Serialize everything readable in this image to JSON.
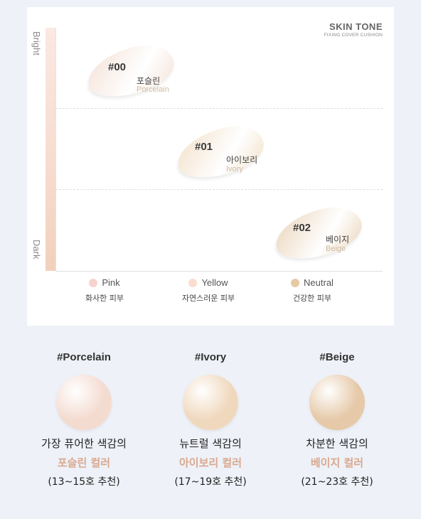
{
  "brand": {
    "title": "SKIN TONE",
    "subtitle": "FIXING COVER CUSHION"
  },
  "axis": {
    "top": "Bright",
    "bottom": "Dark"
  },
  "shades": [
    {
      "code": "#00",
      "name_ko": "포슬린",
      "name_en": "Porcelain",
      "color": "#f4e1d6"
    },
    {
      "code": "#01",
      "name_ko": "아이보리",
      "name_en": "Ivory",
      "color": "#f2e0c8"
    },
    {
      "code": "#02",
      "name_ko": "베이지",
      "name_en": "Beige",
      "color": "#ead4b9"
    }
  ],
  "legend": [
    {
      "name": "Pink",
      "desc": "화사한 피부",
      "color": "#f8d2cc"
    },
    {
      "name": "Yellow",
      "desc": "자연스러운 피부",
      "color": "#f9ddd0"
    },
    {
      "name": "Neutral",
      "desc": "건강한 피부",
      "color": "#e7c9a4"
    }
  ],
  "columns": [
    {
      "tag": "#Porcelain",
      "line1": "가장 퓨어한 색감의",
      "line2": "포슬린 컬러",
      "line3": "(13~15호 추천)",
      "color": "#f4dbd0"
    },
    {
      "tag": "#Ivory",
      "line1": "뉴트럴 색감의",
      "line2": "아이보리 컬러",
      "line3": "(17~19호 추천)",
      "color": "#f0d8bd"
    },
    {
      "tag": "#Beige",
      "line1": "차분한 색감의",
      "line2": "베이지 컬러",
      "line3": "(21~23호 추천)",
      "color": "#e6c9a8"
    }
  ]
}
